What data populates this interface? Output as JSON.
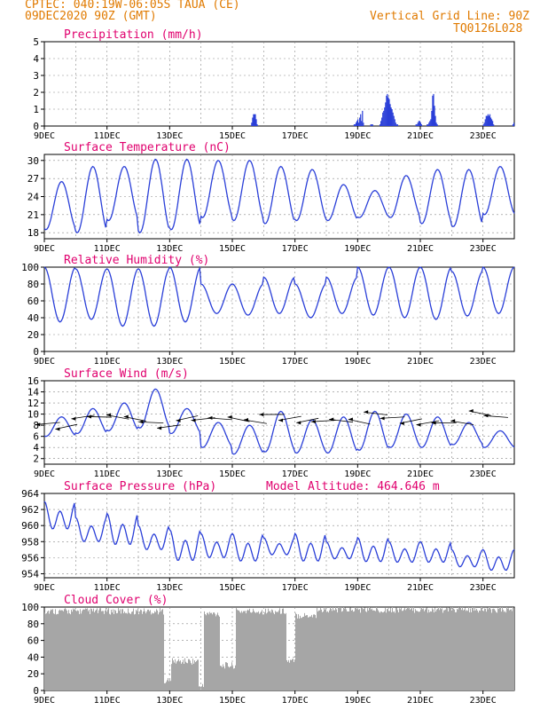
{
  "header": {
    "line1": "CPTEC:   040:19W-06:05S  TAUA (CE)",
    "line2": "09DEC2020 90Z (GMT)",
    "right1": "Vertical Grid Line: 90Z",
    "right2": "TQ0126L028"
  },
  "colors": {
    "header": "#e07a00",
    "title": "#e0006e",
    "line": "#2a3fd8",
    "cloud": "#a6a6a6",
    "axis": "#000000"
  },
  "chart_data": [
    {
      "id": "precip",
      "type": "bar",
      "title": "Precipitation (mm/h)",
      "xlabel": "",
      "ylabel": "",
      "ylim": [
        0,
        5
      ],
      "yticks": [
        "0",
        "1",
        "2",
        "3",
        "4",
        "5"
      ],
      "xticks": [
        "9DEC",
        "11DEC",
        "13DEC",
        "15DEC",
        "17DEC",
        "19DEC",
        "21DEC",
        "23DEC"
      ],
      "x_range_days": [
        9,
        24
      ],
      "values_hourly": [
        0,
        0,
        0,
        0,
        0,
        0,
        0,
        0,
        0,
        0,
        0,
        0,
        0,
        0,
        0,
        0,
        0,
        0,
        0,
        0,
        0,
        0,
        0,
        0,
        0,
        0,
        0,
        0,
        0,
        0,
        0,
        0,
        0,
        0,
        0,
        0,
        0,
        0,
        0,
        0,
        0,
        0,
        0,
        0,
        0,
        0,
        0,
        0,
        0,
        0,
        0,
        0,
        0,
        0,
        0,
        0,
        0,
        0,
        0,
        0,
        0,
        0,
        0,
        0,
        0,
        0,
        0,
        0,
        0,
        0,
        0,
        0,
        0,
        0,
        0,
        0,
        0,
        0,
        0,
        0,
        0,
        0,
        0,
        0,
        0,
        0,
        0,
        0,
        0,
        0,
        0,
        0,
        0,
        0,
        0,
        0,
        0,
        0,
        0,
        0,
        0,
        0,
        0,
        0,
        0,
        0,
        0,
        0,
        0,
        0,
        0,
        0,
        0,
        0,
        0,
        0,
        0,
        0,
        0,
        0,
        0,
        0,
        0,
        0,
        0,
        0,
        0,
        0,
        0,
        0,
        0,
        0,
        0,
        0,
        0,
        0,
        0,
        0,
        0,
        0,
        0,
        0,
        0,
        0,
        0,
        0,
        0,
        0,
        0,
        0,
        0,
        0,
        0,
        0,
        0,
        0,
        0,
        0,
        0,
        0,
        0,
        0,
        0,
        0,
        0,
        0,
        0,
        0,
        0,
        0,
        0,
        0,
        0,
        0,
        0,
        0,
        0,
        0,
        0,
        0,
        0,
        0,
        0,
        0,
        0,
        0,
        0,
        0,
        0,
        0,
        0,
        0,
        0,
        0,
        0,
        0,
        0,
        0,
        0,
        0,
        0,
        0,
        0,
        0,
        0,
        0,
        0,
        0,
        0,
        0,
        0,
        0,
        0,
        0,
        0,
        0,
        0,
        0,
        0,
        0,
        0,
        0,
        0,
        0,
        0.2,
        0.5,
        0.7,
        0.7,
        0.7,
        0.4,
        0.1,
        0,
        0,
        0,
        0,
        0,
        0,
        0,
        0,
        0,
        0,
        0,
        0,
        0,
        0,
        0,
        0,
        0,
        0,
        0,
        0,
        0,
        0,
        0,
        0,
        0,
        0,
        0,
        0,
        0,
        0,
        0,
        0,
        0,
        0,
        0,
        0,
        0,
        0,
        0,
        0,
        0,
        0,
        0,
        0,
        0,
        0,
        0,
        0,
        0,
        0,
        0,
        0,
        0,
        0,
        0,
        0,
        0,
        0,
        0,
        0,
        0,
        0,
        0,
        0,
        0,
        0,
        0,
        0,
        0,
        0,
        0,
        0,
        0,
        0,
        0,
        0,
        0,
        0,
        0,
        0,
        0,
        0,
        0,
        0,
        0,
        0,
        0,
        0,
        0,
        0,
        0,
        0,
        0,
        0,
        0,
        0,
        0,
        0,
        0,
        0,
        0,
        0,
        0,
        0,
        0.1,
        0.1,
        0.2,
        0.3,
        0.4,
        0.2,
        0.5,
        0.7,
        0.3,
        0.9,
        0.2,
        0,
        0,
        0,
        0,
        0,
        0,
        0,
        0.1,
        0.1,
        0.1,
        0,
        0,
        0,
        0,
        0,
        0,
        0,
        0.1,
        0.3,
        0.5,
        0.8,
        0.9,
        1.1,
        1.4,
        1.8,
        1.9,
        1.7,
        1.6,
        1.3,
        1.1,
        1.0,
        0.8,
        0.6,
        0.4,
        0.2,
        0.1,
        0.1,
        0,
        0,
        0,
        0,
        0,
        0,
        0,
        0,
        0,
        0,
        0,
        0,
        0,
        0,
        0,
        0,
        0,
        0,
        0,
        0.1,
        0.1,
        0.2,
        0.3,
        0.3,
        0.2,
        0.1,
        0,
        0,
        0,
        0,
        0,
        0.1,
        0.1,
        0.2,
        0.3,
        0.4,
        0.9,
        1.8,
        1.9,
        1.2,
        0.6,
        0.2,
        0.1,
        0,
        0,
        0,
        0,
        0,
        0,
        0,
        0,
        0,
        0,
        0,
        0,
        0,
        0,
        0,
        0,
        0,
        0,
        0,
        0,
        0,
        0,
        0,
        0,
        0,
        0,
        0,
        0,
        0,
        0,
        0,
        0,
        0,
        0,
        0,
        0,
        0,
        0,
        0,
        0,
        0,
        0,
        0,
        0,
        0,
        0,
        0,
        0,
        0,
        0.1,
        0.2,
        0.4,
        0.6,
        0.6,
        0.7,
        0.6,
        0.7,
        0.5,
        0.4,
        0.3,
        0.1,
        0,
        0,
        0,
        0,
        0,
        0,
        0,
        0,
        0,
        0,
        0,
        0,
        0,
        0,
        0,
        0,
        0,
        0,
        0,
        0,
        0.1,
        0.2
      ]
    },
    {
      "id": "temp",
      "type": "line",
      "title": "Surface Temperature (nC)",
      "ylim": [
        17,
        31
      ],
      "yticks": [
        "18",
        "21",
        "24",
        "27",
        "30"
      ],
      "xticks": [
        "9DEC",
        "11DEC",
        "13DEC",
        "15DEC",
        "17DEC",
        "19DEC",
        "21DEC",
        "23DEC"
      ],
      "x_range_days": [
        9,
        24
      ],
      "daily_max": [
        26.5,
        29.0,
        29.0,
        30.2,
        30.2,
        30.0,
        30.0,
        29.0,
        28.5,
        26.0,
        25.0,
        27.5,
        28.5,
        28.5,
        29.0
      ],
      "daily_min": [
        18.5,
        18.0,
        20.0,
        18.0,
        18.5,
        20.5,
        20.0,
        19.5,
        20.0,
        20.0,
        20.5,
        20.5,
        19.5,
        19.0,
        21.0
      ]
    },
    {
      "id": "rh",
      "type": "line",
      "title": "Relative Humidity (%)",
      "ylim": [
        0,
        100
      ],
      "yticks": [
        "0",
        "20",
        "40",
        "60",
        "80",
        "100"
      ],
      "xticks": [
        "9DEC",
        "11DEC",
        "13DEC",
        "15DEC",
        "17DEC",
        "19DEC",
        "21DEC",
        "23DEC"
      ],
      "x_range_days": [
        9,
        24
      ],
      "daily_max": [
        100,
        98,
        98,
        98,
        100,
        80,
        80,
        88,
        80,
        88,
        100,
        100,
        100,
        95,
        100
      ],
      "daily_min": [
        35,
        38,
        30,
        30,
        35,
        45,
        43,
        45,
        40,
        45,
        43,
        40,
        38,
        42,
        45
      ]
    },
    {
      "id": "wind",
      "type": "line",
      "title": "Surface Wind (m/s)",
      "ylim": [
        1,
        16
      ],
      "yticks": [
        "2",
        "4",
        "6",
        "8",
        "10",
        "12",
        "14",
        "16"
      ],
      "xticks": [
        "9DEC",
        "11DEC",
        "13DEC",
        "15DEC",
        "17DEC",
        "19DEC",
        "21DEC",
        "23DEC"
      ],
      "x_range_days": [
        9,
        24
      ],
      "daily_max": [
        9.5,
        11.0,
        12.0,
        14.5,
        11.0,
        8.5,
        8.0,
        10.5,
        9.0,
        9.5,
        10.5,
        10.0,
        9.5,
        8.5,
        7.0
      ],
      "daily_min": [
        6.0,
        6.5,
        7.0,
        7.5,
        6.5,
        4.0,
        2.8,
        3.2,
        3.0,
        3.0,
        3.5,
        4.0,
        4.0,
        4.5,
        4.0
      ],
      "arrows_note": "wind direction vectors"
    },
    {
      "id": "pres",
      "type": "line",
      "title": "Surface Pressure (hPa)",
      "subtitle": "Model Altitude: 464.646  m",
      "ylim": [
        953.5,
        964
      ],
      "yticks": [
        "954",
        "956",
        "958",
        "960",
        "962",
        "964"
      ],
      "xticks": [
        "9DEC",
        "11DEC",
        "13DEC",
        "15DEC",
        "17DEC",
        "19DEC",
        "21DEC",
        "23DEC"
      ],
      "x_range_days": [
        9,
        24
      ],
      "daily_max": [
        963.0,
        961.0,
        961.5,
        960.0,
        959.5,
        959.0,
        959.0,
        958.5,
        959.0,
        958.0,
        958.5,
        958.0,
        958.0,
        957.0,
        957.0
      ],
      "daily_min": [
        959.0,
        957.5,
        957.0,
        956.5,
        955.0,
        955.5,
        955.0,
        956.0,
        955.0,
        955.5,
        955.0,
        955.0,
        955.0,
        954.5,
        954.0
      ]
    },
    {
      "id": "cloud",
      "type": "area",
      "title": "Cloud Cover (%)",
      "ylim": [
        0,
        100
      ],
      "yticks": [
        "0",
        "20",
        "40",
        "60",
        "80",
        "100"
      ],
      "xticks": [
        "9DEC",
        "11DEC",
        "13DEC",
        "15DEC",
        "17DEC",
        "19DEC",
        "21DEC",
        "23DEC"
      ],
      "x_range_days": [
        9,
        24
      ],
      "segments": [
        {
          "from": 9.0,
          "to": 12.8,
          "level": 95
        },
        {
          "from": 12.8,
          "to": 13.05,
          "level": 12
        },
        {
          "from": 13.05,
          "to": 13.9,
          "level": 35
        },
        {
          "from": 13.9,
          "to": 14.1,
          "level": 5
        },
        {
          "from": 14.1,
          "to": 14.6,
          "level": 92
        },
        {
          "from": 14.6,
          "to": 15.1,
          "level": 30
        },
        {
          "from": 15.1,
          "to": 16.7,
          "level": 95
        },
        {
          "from": 16.7,
          "to": 17.0,
          "level": 35
        },
        {
          "from": 17.0,
          "to": 17.7,
          "level": 90
        },
        {
          "from": 17.7,
          "to": 24.0,
          "level": 97
        }
      ]
    }
  ],
  "aria": "CPTEC meteogram"
}
